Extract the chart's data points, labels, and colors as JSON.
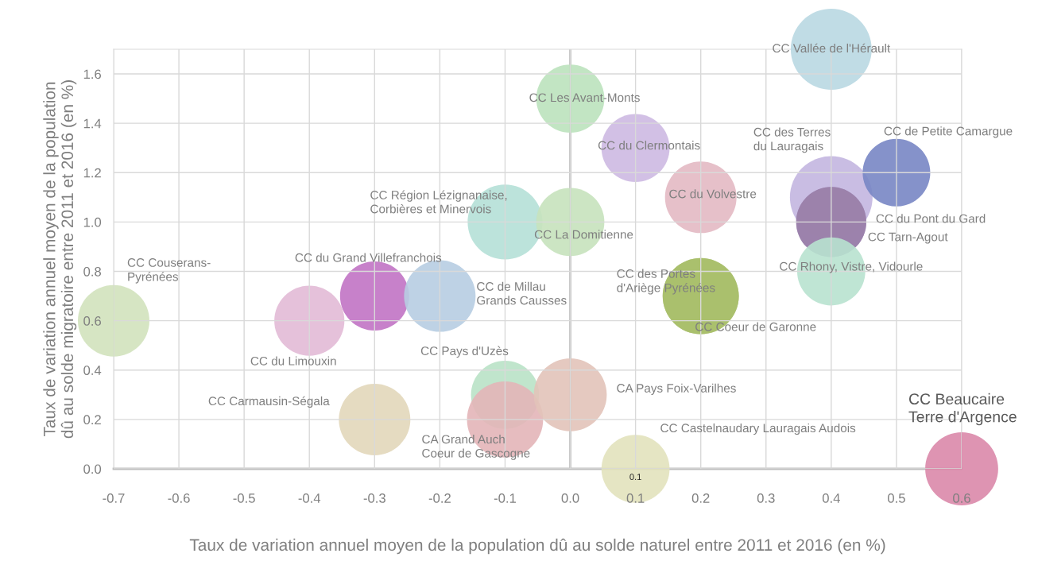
{
  "chart_data": {
    "type": "bubble",
    "xlabel": "Taux de variation annuel moyen de la population dû au solde naturel entre 2011 et 2016 (en %)",
    "ylabel": "Taux de variation annuel moyen de la population\ndû au solde migratoire entre 2011 et 2016 (en %)",
    "xlim": [
      -0.7,
      0.6
    ],
    "ylim": [
      0.0,
      1.7
    ],
    "xticks": [
      -0.7,
      -0.6,
      -0.5,
      -0.4,
      -0.3,
      -0.2,
      -0.1,
      {
        "value": 0,
        "label": "0.0"
      },
      0.1,
      0.2,
      0.3,
      0.4,
      0.5,
      0.6
    ],
    "yticks": [
      {
        "value": 0,
        "label": "0.0"
      },
      0.2,
      0.4,
      0.6,
      0.8,
      {
        "value": 1,
        "label": "1.0"
      },
      1.2,
      1.4,
      1.6
    ],
    "grid": true,
    "ref_lines": [
      {
        "axis": "x",
        "value": 0,
        "label": null,
        "color": "#bfbfbf"
      }
    ],
    "annotations": [
      {
        "text": "0.1",
        "x": 0.1,
        "y": 0.0
      }
    ],
    "series": [
      {
        "name": "CC Vallée de l'Hérault",
        "color": "#b9d8e2",
        "x": [
          0.4
        ],
        "values": [
          1.7
        ],
        "sizes": [
          0.96
        ]
      },
      {
        "name": "CC Les Avant-Monts",
        "color": "#bbe2bc",
        "x": [
          0.0
        ],
        "values": [
          1.5
        ],
        "sizes": [
          0.68
        ]
      },
      {
        "name": "CC du Clermontais",
        "color": "#cdb9e2",
        "x": [
          0.1
        ],
        "values": [
          1.3
        ],
        "sizes": [
          0.68
        ]
      },
      {
        "name": "CC des Terres\ndu Lauragais",
        "color": "#c3b6e0",
        "x": [
          0.4
        ],
        "values": [
          1.1
        ],
        "sizes": [
          1.0
        ]
      },
      {
        "name": "CC de Petite Camargue",
        "color": "#7886c4",
        "x": [
          0.5
        ],
        "values": [
          1.2
        ],
        "sizes": [
          0.67
        ]
      },
      {
        "name": "CC du Volvestre",
        "color": "#e3b9c3",
        "x": [
          0.2
        ],
        "values": [
          1.1
        ],
        "sizes": [
          0.75
        ]
      },
      {
        "name": "CC Région Lézignanaise,\nCorbières et Minervois",
        "color": "#b5e0d7",
        "x": [
          -0.1
        ],
        "values": [
          1.0
        ],
        "sizes": [
          0.82
        ]
      },
      {
        "name": "CC La Domitienne",
        "color": "#c6e2bc",
        "x": [
          0.0
        ],
        "values": [
          1.0
        ],
        "sizes": [
          0.68
        ]
      },
      {
        "name": "CC du Pont du Gard",
        "color": "#a58fc0",
        "x": [
          0.4
        ],
        "values": [
          1.0
        ],
        "sizes": [
          0.72
        ]
      },
      {
        "name": "CC Tarn-Agout",
        "color": "#9a80a8",
        "x": [
          0.4
        ],
        "values": [
          1.0
        ],
        "sizes": [
          0.72
        ]
      },
      {
        "name": "CC Rhony, Vistre, Vidourle",
        "color": "#b8e2cf",
        "x": [
          0.4
        ],
        "values": [
          0.8
        ],
        "sizes": [
          0.68
        ]
      },
      {
        "name": "CC Couserans-\nPyrénées",
        "color": "#d1e2bc",
        "x": [
          -0.7
        ],
        "values": [
          0.6
        ],
        "sizes": [
          0.75
        ]
      },
      {
        "name": "CC du Grand Villefranchois",
        "color": "#c173c4",
        "x": [
          -0.3
        ],
        "values": [
          0.7
        ],
        "sizes": [
          0.7
        ]
      },
      {
        "name": "CC de Millau\nGrands Causses",
        "color": "#b7cde2",
        "x": [
          -0.2
        ],
        "values": [
          0.7
        ],
        "sizes": [
          0.75
        ]
      },
      {
        "name": "CC du Limouxin",
        "color": "#e2bad6",
        "x": [
          -0.4
        ],
        "values": [
          0.6
        ],
        "sizes": [
          0.72
        ]
      },
      {
        "name": "CC des Portes\nd'Ariège Pyrénées",
        "color": "#b0c47a",
        "x": [
          0.2
        ],
        "values": [
          0.7
        ],
        "sizes": [
          0.85
        ]
      },
      {
        "name": "CC Coeur de Garonne",
        "color": "#a8bf6a",
        "x": [
          0.2
        ],
        "values": [
          0.7
        ],
        "sizes": [
          0.85
        ]
      },
      {
        "name": "CC Pays d'Uzès",
        "color": "#b9e2c6",
        "x": [
          -0.1
        ],
        "values": [
          0.3
        ],
        "sizes": [
          0.68
        ]
      },
      {
        "name": "CA Grand Auch\nCoeur de Gascogne",
        "color": "#e3b5b8",
        "x": [
          -0.1
        ],
        "values": [
          0.2
        ],
        "sizes": [
          0.85
        ]
      },
      {
        "name": "CA Pays Foix-Varilhes",
        "color": "#e2c3b9",
        "x": [
          0.0
        ],
        "values": [
          0.3
        ],
        "sizes": [
          0.78
        ]
      },
      {
        "name": "CC Carmausin-Ségala",
        "color": "#e2d7ba",
        "x": [
          -0.3
        ],
        "values": [
          0.2
        ],
        "sizes": [
          0.75
        ]
      },
      {
        "name": "CC Castelnaudary Lauragais Audois",
        "color": "#e2e2bc",
        "x": [
          0.1
        ],
        "values": [
          0.0
        ],
        "sizes": [
          0.68
        ]
      },
      {
        "name": "CC Beaucaire\nTerre d'Argence",
        "color": "#da88aa",
        "x": [
          0.6
        ],
        "values": [
          0.0
        ],
        "sizes": [
          0.78
        ]
      }
    ]
  }
}
